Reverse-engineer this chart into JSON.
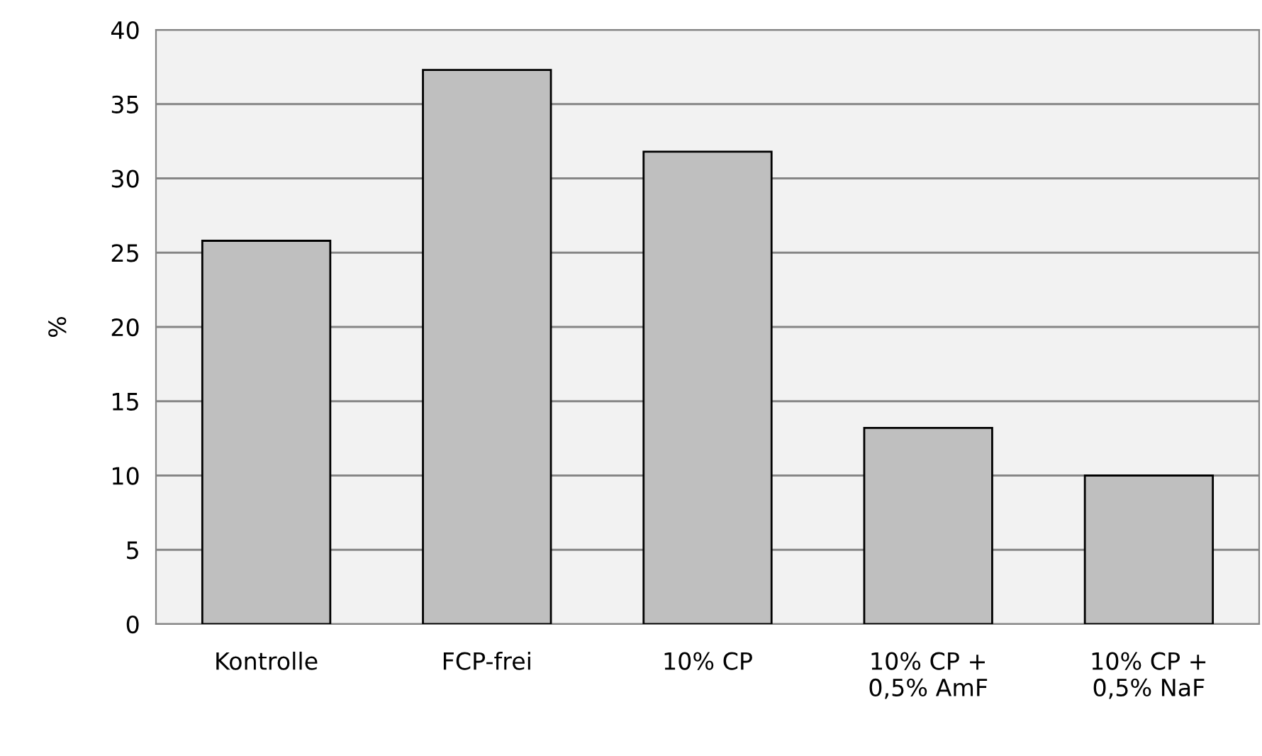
{
  "chart_data": {
    "type": "bar",
    "ylabel": "%",
    "categories": [
      "Kontrolle",
      "FCP-frei",
      "10% CP",
      "10% CP +\n0,5% AmF",
      "10% CP +\n0,5% NaF"
    ],
    "values": [
      25.8,
      37.3,
      31.8,
      13.2,
      10.0
    ],
    "color": "#bfbfbf",
    "ylim": [
      0,
      40
    ],
    "yticks": [
      0,
      5,
      10,
      15,
      20,
      25,
      30,
      35,
      40
    ],
    "grid": "y"
  }
}
